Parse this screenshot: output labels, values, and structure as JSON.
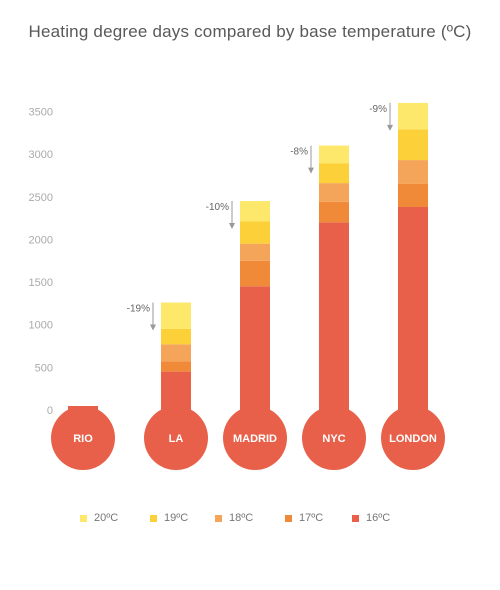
{
  "title": "Heating degree days compared by base temperature (ºC)",
  "colors": {
    "16": "#E8604A",
    "17": "#F08A38",
    "18": "#F4A55A",
    "19": "#FCD038",
    "20": "#FDE86C",
    "bulb_text": "#ffffff",
    "axis_text": "#aaaaaa",
    "annotation_text": "#666666",
    "arrow": "#999999"
  },
  "legend": [
    {
      "label": "20ºC",
      "color": "#FDE86C"
    },
    {
      "label": "19ºC",
      "color": "#FCD038"
    },
    {
      "label": "18ºC",
      "color": "#F4A55A"
    },
    {
      "label": "17ºC",
      "color": "#F08A38"
    },
    {
      "label": "16ºC",
      "color": "#E8604A"
    }
  ],
  "chart_data": {
    "type": "bar",
    "stacked": true,
    "title": "Heating degree days compared by base temperature (ºC)",
    "categories": [
      "RIO",
      "LA",
      "MADRID",
      "NYC",
      "LONDON"
    ],
    "series": [
      {
        "name": "16ºC",
        "values": [
          0,
          450,
          1450,
          2200,
          2380
        ]
      },
      {
        "name": "17ºC",
        "values": [
          0,
          120,
          300,
          240,
          270
        ]
      },
      {
        "name": "18ºC",
        "values": [
          0,
          200,
          200,
          220,
          280
        ]
      },
      {
        "name": "19ºC",
        "values": [
          0,
          180,
          260,
          230,
          360
        ]
      },
      {
        "name": "20ºC",
        "values": [
          0,
          310,
          240,
          210,
          310
        ]
      }
    ],
    "annotations": [
      "",
      "-19%",
      "-10%",
      "-8%",
      "-9%"
    ],
    "yticks": [
      0,
      500,
      1000,
      1500,
      2000,
      2500,
      3000,
      3500
    ],
    "ylim": [
      0,
      3500
    ],
    "xlabel": "",
    "ylabel": "",
    "legend_position": "bottom"
  }
}
